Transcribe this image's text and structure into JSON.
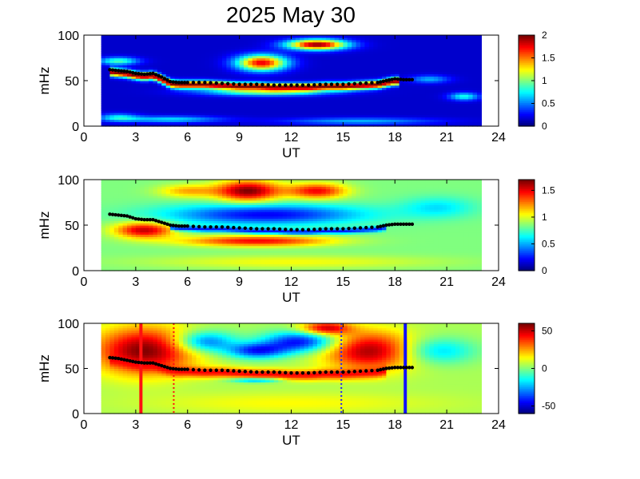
{
  "figure": {
    "title": "2025 May 30"
  },
  "chart_data": [
    {
      "type": "heatmap",
      "xlabel": "UT",
      "ylabel": "mHz",
      "xlim": [
        0,
        24
      ],
      "ylim": [
        0,
        100
      ],
      "xticks": [
        "0",
        "3",
        "6",
        "9",
        "12",
        "15",
        "18",
        "21",
        "24"
      ],
      "yticks": [
        "0",
        "50",
        "100"
      ],
      "colorbar": {
        "range": [
          0,
          2
        ],
        "ticks": [
          "0",
          "0.5",
          "1",
          "1.5",
          "2"
        ]
      },
      "data_range_hours": [
        1,
        23
      ],
      "background_value": 0.15,
      "blobs": [
        {
          "x": 13.5,
          "y": 90,
          "sx": 1.2,
          "sy": 4,
          "v": 2.0
        },
        {
          "x": 10.3,
          "y": 70,
          "sx": 1.0,
          "sy": 6,
          "v": 1.8
        },
        {
          "x": 22.0,
          "y": 33,
          "sx": 0.6,
          "sy": 3,
          "v": 0.8
        },
        {
          "x": 2.0,
          "y": 72,
          "sx": 0.8,
          "sy": 3,
          "v": 0.9
        },
        {
          "x": 20.0,
          "y": 52,
          "sx": 0.8,
          "sy": 3,
          "v": 0.6
        },
        {
          "x": 10.5,
          "y": 38,
          "sx": 2.5,
          "sy": 3,
          "v": 1.0
        },
        {
          "x": 5.0,
          "y": 8,
          "sx": 2.0,
          "sy": 2.5,
          "v": 0.7
        },
        {
          "x": 16.0,
          "y": 6,
          "sx": 3.0,
          "sy": 2.5,
          "v": 0.6
        },
        {
          "x": 2.0,
          "y": 10,
          "sx": 0.8,
          "sy": 3,
          "v": 0.7
        }
      ],
      "band": {
        "value": 2.0,
        "width": 6,
        "x_start": 1.5,
        "x_end": 18.2
      },
      "trace": {
        "x": [
          1.5,
          2.0,
          2.5,
          3.0,
          3.5,
          4.0,
          4.5,
          5.0,
          5.5,
          6.0,
          7.0,
          8.0,
          9.0,
          10.0,
          11.0,
          12.0,
          13.0,
          14.0,
          15.0,
          16.0,
          17.0,
          17.5,
          18.0,
          18.5,
          19.0
        ],
        "y": [
          62,
          61,
          60,
          58,
          57,
          58,
          54,
          49,
          48,
          48,
          48,
          47,
          46,
          46,
          45,
          45,
          45,
          46,
          46,
          47,
          48,
          50,
          52,
          51,
          51
        ]
      }
    },
    {
      "type": "heatmap",
      "xlabel": "UT",
      "ylabel": "mHz",
      "xlim": [
        0,
        24
      ],
      "ylim": [
        0,
        100
      ],
      "xticks": [
        "0",
        "3",
        "6",
        "9",
        "12",
        "15",
        "18",
        "21",
        "24"
      ],
      "yticks": [
        "0",
        "50",
        "100"
      ],
      "colorbar": {
        "range": [
          0,
          1.7
        ],
        "ticks": [
          "0",
          "0.5",
          "1",
          "1.5"
        ]
      },
      "data_range_hours": [
        1,
        23
      ],
      "background_value": 0.85,
      "blobs": [
        {
          "x": 9.5,
          "y": 88,
          "sx": 1.3,
          "sy": 8,
          "v": 1.7
        },
        {
          "x": 13.5,
          "y": 88,
          "sx": 1.2,
          "sy": 6,
          "v": 1.5
        },
        {
          "x": 10.5,
          "y": 62,
          "sx": 4.0,
          "sy": 8,
          "v": 0.2
        },
        {
          "x": 6.0,
          "y": 88,
          "sx": 1.2,
          "sy": 5,
          "v": 1.2
        },
        {
          "x": 3.5,
          "y": 45,
          "sx": 1.2,
          "sy": 6,
          "v": 1.6
        },
        {
          "x": 10.0,
          "y": 33,
          "sx": 3.0,
          "sy": 4,
          "v": 1.5
        },
        {
          "x": 20.5,
          "y": 70,
          "sx": 1.5,
          "sy": 8,
          "v": 0.6
        },
        {
          "x": 12.0,
          "y": 10,
          "sx": 6.0,
          "sy": 5,
          "v": 1.05
        }
      ],
      "band": {
        "value": 0.25,
        "width": 4,
        "x_start": 5.0,
        "x_end": 17.5
      },
      "trace": {
        "x": [
          1.5,
          2.0,
          2.5,
          3.0,
          3.5,
          4.0,
          4.5,
          5.0,
          5.5,
          6.0,
          7.0,
          8.0,
          9.0,
          10.0,
          11.0,
          12.0,
          13.0,
          14.0,
          15.0,
          16.0,
          17.0,
          17.5,
          18.0,
          18.5,
          19.0
        ],
        "y": [
          62,
          61,
          60,
          57,
          56,
          56,
          53,
          50,
          49,
          49,
          48,
          48,
          47,
          46,
          46,
          45,
          45,
          46,
          46,
          47,
          48,
          50,
          51,
          51,
          51
        ]
      }
    },
    {
      "type": "heatmap",
      "xlabel": "UT",
      "ylabel": "mHz",
      "xlim": [
        0,
        24
      ],
      "ylim": [
        0,
        100
      ],
      "xticks": [
        "0",
        "3",
        "6",
        "9",
        "12",
        "15",
        "18",
        "21",
        "24"
      ],
      "yticks": [
        "0",
        "50",
        "100"
      ],
      "colorbar": {
        "range": [
          -60,
          60
        ],
        "ticks": [
          "50",
          "0",
          "-50"
        ]
      },
      "data_range_hours": [
        1,
        23
      ],
      "background_value": 5,
      "blobs": [
        {
          "x": 3.5,
          "y": 70,
          "sx": 2.0,
          "sy": 18,
          "v": 60
        },
        {
          "x": 16.5,
          "y": 70,
          "sx": 1.8,
          "sy": 15,
          "v": 55
        },
        {
          "x": 12.5,
          "y": 80,
          "sx": 1.5,
          "sy": 8,
          "v": -45
        },
        {
          "x": 7.0,
          "y": 80,
          "sx": 1.2,
          "sy": 8,
          "v": -35
        },
        {
          "x": 10.0,
          "y": 70,
          "sx": 1.2,
          "sy": 6,
          "v": -40
        },
        {
          "x": 14.0,
          "y": 95,
          "sx": 1.0,
          "sy": 5,
          "v": 50
        },
        {
          "x": 10.0,
          "y": 38,
          "sx": 1.0,
          "sy": 2,
          "v": -45
        },
        {
          "x": 20.5,
          "y": 70,
          "sx": 1.5,
          "sy": 10,
          "v": -20
        },
        {
          "x": 12.0,
          "y": 12,
          "sx": 6.0,
          "sy": 8,
          "v": 15
        }
      ],
      "band": {
        "value": 45,
        "width": 8,
        "x_start": 1.5,
        "x_end": 17.5
      },
      "trace": {
        "x": [
          1.5,
          2.0,
          2.5,
          3.0,
          3.5,
          4.0,
          4.5,
          5.0,
          5.5,
          6.0,
          7.0,
          8.0,
          9.0,
          10.0,
          11.0,
          12.0,
          13.0,
          14.0,
          15.0,
          16.0,
          17.0,
          17.5,
          18.0,
          18.5,
          19.0
        ],
        "y": [
          62,
          61,
          59,
          57,
          56,
          56,
          53,
          50,
          49,
          49,
          48,
          48,
          47,
          46,
          46,
          45,
          45,
          46,
          46,
          47,
          48,
          50,
          51,
          51,
          51
        ]
      },
      "markers": [
        {
          "x": 3.3,
          "style": "solid",
          "color": "#ff1010"
        },
        {
          "x": 5.2,
          "style": "dotted",
          "color": "#ff1010"
        },
        {
          "x": 14.9,
          "style": "dotted",
          "color": "#2020ff"
        },
        {
          "x": 18.6,
          "style": "solid",
          "color": "#1010ff"
        }
      ]
    }
  ]
}
